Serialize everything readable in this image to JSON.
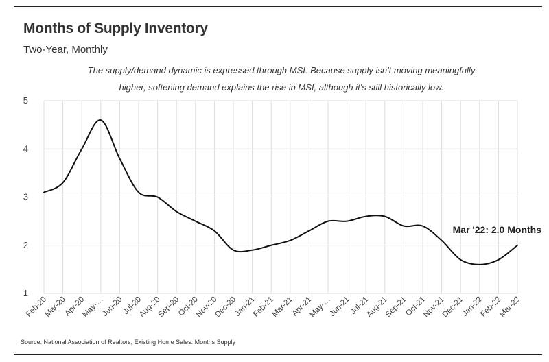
{
  "chart_data": {
    "type": "line",
    "title": "Months of Supply Inventory",
    "subtitle": "Two-Year, Monthly",
    "note": "The supply/demand dynamic is expressed through MSI. Because supply isn't moving meaningfully higher, softening demand explains the rise in MSI, although it's still historically low.",
    "source": "Source:  National Association of Realtors, Existing Home Sales: Months Supply",
    "xlabel": "",
    "ylabel": "",
    "ylim": [
      1,
      5
    ],
    "yticks": [
      1,
      2,
      3,
      4,
      5
    ],
    "grid": true,
    "categories": [
      "Feb-20",
      "Mar-20",
      "Apr-20",
      "May-…",
      "Jun-20",
      "Jul-20",
      "Aug-20",
      "Sep-20",
      "Oct-20",
      "Nov-20",
      "Dec-20",
      "Jan-21",
      "Feb-21",
      "Mar-21",
      "Apr-21",
      "May-…",
      "Jun-21",
      "Jul-21",
      "Aug-21",
      "Sep-21",
      "Oct-21",
      "Nov-21",
      "Dec-21",
      "Jan-22",
      "Feb-22",
      "Mar-22"
    ],
    "series": [
      {
        "name": "Months Supply",
        "values": [
          3.1,
          3.3,
          4.0,
          4.6,
          3.8,
          3.1,
          3.0,
          2.7,
          2.5,
          2.3,
          1.9,
          1.9,
          2.0,
          2.1,
          2.3,
          2.5,
          2.5,
          2.6,
          2.6,
          2.4,
          2.4,
          2.1,
          1.7,
          1.6,
          1.7,
          2.0
        ]
      }
    ],
    "annotation": {
      "label": "Mar '22: 2.0 Months",
      "category": "Mar-22",
      "value": 2.0
    },
    "line_color": "#111111",
    "grid_color": "#dddddd"
  }
}
